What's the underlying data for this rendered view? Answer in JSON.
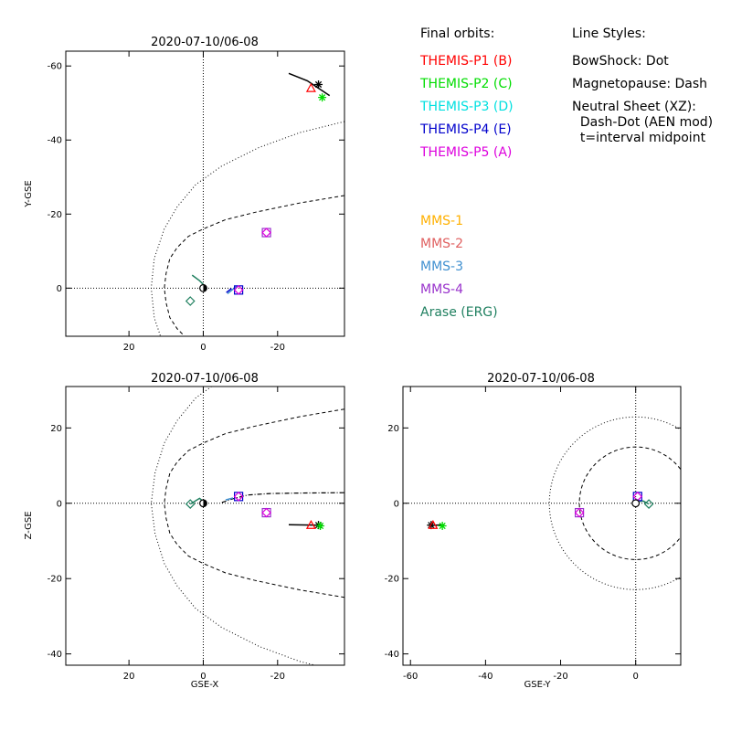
{
  "legend": {
    "orbits_title": "Final orbits:",
    "orbits": [
      {
        "label": "THEMIS-P1 (B)",
        "color": "#ff0000"
      },
      {
        "label": "THEMIS-P2 (C)",
        "color": "#00dd00"
      },
      {
        "label": "THEMIS-P3 (D)",
        "color": "#00e0e0"
      },
      {
        "label": "THEMIS-P4 (E)",
        "color": "#0000cc"
      },
      {
        "label": "THEMIS-P5 (A)",
        "color": "#dd00dd"
      }
    ],
    "mms": [
      {
        "label": "MMS-1",
        "color": "#ffb000"
      },
      {
        "label": "MMS-2",
        "color": "#e06060"
      },
      {
        "label": "MMS-3",
        "color": "#4090d0"
      },
      {
        "label": "MMS-4",
        "color": "#9933cc"
      },
      {
        "label": "Arase (ERG)",
        "color": "#208060"
      }
    ],
    "styles_title": "Line Styles:",
    "styles": [
      "BowShock: Dot",
      "Magnetopause: Dash",
      "Neutral Sheet (XZ):",
      "  Dash-Dot (AEN mod)",
      "  t=interval midpoint"
    ]
  },
  "chart_data": [
    {
      "type": "scatter",
      "title": "2020-07-10/06-08",
      "xlabel": "",
      "ylabel": "Y-GSE",
      "xlim": [
        37,
        -38
      ],
      "ylim": [
        13,
        -64
      ],
      "xticks": [
        20,
        0,
        -20
      ],
      "yticks": [
        0,
        -20,
        -40,
        -60
      ],
      "bowshock_xy": [
        [
          14,
          0
        ],
        [
          13.2,
          8
        ],
        [
          10.5,
          16
        ],
        [
          7,
          22
        ],
        [
          2,
          28
        ],
        [
          -5,
          33
        ],
        [
          -15,
          38
        ],
        [
          -26,
          42
        ],
        [
          -38,
          45
        ]
      ],
      "magnetopause_xy": [
        [
          10.5,
          0
        ],
        [
          10,
          4
        ],
        [
          9,
          8
        ],
        [
          7,
          11
        ],
        [
          4,
          14
        ],
        [
          0,
          16
        ],
        [
          -6,
          18.5
        ],
        [
          -14,
          20.5
        ],
        [
          -26,
          23
        ],
        [
          -38,
          25
        ]
      ],
      "bowshock_mirror": true,
      "magnetopause_mirror": true,
      "arcs": [
        {
          "color": "#000000",
          "pts": [
            [
              -23,
              -58
            ],
            [
              -28,
              -56
            ],
            [
              -31,
              -54
            ],
            [
              -34,
              -52
            ]
          ]
        },
        {
          "color": "#208060",
          "pts": [
            [
              3,
              -3.5
            ],
            [
              1,
              -2
            ],
            [
              0,
              -1
            ]
          ]
        },
        {
          "color": "#4090d0",
          "pts": [
            [
              -6.5,
              1.5
            ],
            [
              -8,
              0.3
            ],
            [
              -9,
              -0.5
            ]
          ]
        },
        {
          "color": "#0000cc",
          "pts": [
            [
              -6.2,
              1.2
            ],
            [
              -7.6,
              0.1
            ]
          ]
        }
      ],
      "markers": [
        {
          "x": -31,
          "y": -55,
          "sym": "star",
          "color": "#000000"
        },
        {
          "x": -29,
          "y": -54,
          "sym": "triangle",
          "color": "#ff0000"
        },
        {
          "x": -32,
          "y": -51.5,
          "sym": "star",
          "color": "#00dd00"
        },
        {
          "x": -17,
          "y": -15,
          "sym": "square",
          "color": "#9933cc"
        },
        {
          "x": -17,
          "y": -15,
          "sym": "diamond",
          "color": "#dd00dd"
        },
        {
          "x": -9.5,
          "y": 0.5,
          "sym": "square",
          "color": "#0000cc"
        },
        {
          "x": -9.5,
          "y": 0.5,
          "sym": "diamond",
          "color": "#dd00dd"
        },
        {
          "x": 3.5,
          "y": 3.5,
          "sym": "diamond",
          "color": "#208060"
        }
      ],
      "earth": {
        "x": 0,
        "y": 0,
        "half_filled": true
      }
    },
    {
      "type": "scatter",
      "title": "2020-07-10/06-08",
      "xlabel": "GSE-X",
      "ylabel": "Z-GSE",
      "xlim": [
        37,
        -38
      ],
      "ylim": [
        -43,
        31
      ],
      "xticks": [
        20,
        0,
        -20
      ],
      "yticks": [
        -40,
        -20,
        0,
        20
      ],
      "bowshock_xy": [
        [
          14,
          0
        ],
        [
          13,
          -8
        ],
        [
          10.5,
          -16
        ],
        [
          7,
          -22
        ],
        [
          2,
          -28
        ],
        [
          -5,
          -33
        ],
        [
          -15,
          -38
        ],
        [
          -26,
          -42
        ],
        [
          -38,
          -45
        ]
      ],
      "magnetopause_xy": [
        [
          10.5,
          0
        ],
        [
          10,
          -4
        ],
        [
          9,
          -8
        ],
        [
          7,
          -11
        ],
        [
          4,
          -14
        ],
        [
          0,
          -16
        ],
        [
          -6,
          -18.5
        ],
        [
          -14,
          -20.5
        ],
        [
          -26,
          -23
        ],
        [
          -38,
          -25
        ]
      ],
      "bowshock_mirror": true,
      "magnetopause_mirror": true,
      "neutral_sheet": [
        [
          -5,
          0.2
        ],
        [
          -8,
          1.2
        ],
        [
          -12,
          2.2
        ],
        [
          -18,
          2.6
        ],
        [
          -26,
          2.7
        ],
        [
          -38,
          2.8
        ]
      ],
      "arcs": [
        {
          "color": "#000000",
          "pts": [
            [
              -23,
              -5.7
            ],
            [
              -31,
              -5.8
            ]
          ]
        },
        {
          "color": "#208060",
          "pts": [
            [
              3.5,
              -0.2
            ],
            [
              1,
              1.3
            ],
            [
              0,
              0.5
            ]
          ]
        },
        {
          "color": "#4090d0",
          "pts": [
            [
              -6,
              0.9
            ],
            [
              -8,
              1.4
            ]
          ]
        }
      ],
      "markers": [
        {
          "x": -31,
          "y": -5.8,
          "sym": "star",
          "color": "#000000"
        },
        {
          "x": -29,
          "y": -5.8,
          "sym": "triangle",
          "color": "#ff0000"
        },
        {
          "x": -31.5,
          "y": -6,
          "sym": "star",
          "color": "#00dd00"
        },
        {
          "x": -17,
          "y": -2.5,
          "sym": "square",
          "color": "#9933cc"
        },
        {
          "x": -17,
          "y": -2.5,
          "sym": "diamond",
          "color": "#dd00dd"
        },
        {
          "x": -9.5,
          "y": 1.8,
          "sym": "square",
          "color": "#0000cc"
        },
        {
          "x": -9.5,
          "y": 1.8,
          "sym": "diamond",
          "color": "#dd00dd"
        },
        {
          "x": 3.5,
          "y": -0.2,
          "sym": "diamond",
          "color": "#208060"
        }
      ],
      "earth": {
        "x": 0,
        "y": 0,
        "half_filled": true
      }
    },
    {
      "type": "scatter",
      "title": "2020-07-10/06-08",
      "xlabel": "GSE-Y",
      "ylabel": "",
      "xlim": [
        -62,
        12
      ],
      "ylim": [
        -43,
        31
      ],
      "xticks": [
        -60,
        -40,
        -20,
        0
      ],
      "yticks": [
        -40,
        -20,
        0,
        20
      ],
      "bowshock_radius": 23,
      "magnetopause_radius": 15,
      "arcs": [
        {
          "color": "#000000",
          "pts": [
            [
              -51,
              -5.7
            ],
            [
              -55,
              -5.9
            ]
          ]
        },
        {
          "color": "#208060",
          "pts": [
            [
              3.5,
              -0.2
            ],
            [
              2,
              0.6
            ],
            [
              1,
              0.5
            ]
          ]
        },
        {
          "color": "#4090d0",
          "pts": [
            [
              0.5,
              0.5
            ],
            [
              0.6,
              1.1
            ]
          ]
        }
      ],
      "markers": [
        {
          "x": -54.5,
          "y": -5.8,
          "sym": "star",
          "color": "#000000"
        },
        {
          "x": -54,
          "y": -5.8,
          "sym": "triangle",
          "color": "#ff0000"
        },
        {
          "x": -51.5,
          "y": -6,
          "sym": "star",
          "color": "#00dd00"
        },
        {
          "x": -15,
          "y": -2.5,
          "sym": "square",
          "color": "#9933cc"
        },
        {
          "x": -15,
          "y": -2.5,
          "sym": "diamond",
          "color": "#dd00dd"
        },
        {
          "x": 0.5,
          "y": 1.8,
          "sym": "square",
          "color": "#0000cc"
        },
        {
          "x": 0.5,
          "y": 1.8,
          "sym": "diamond",
          "color": "#dd00dd"
        },
        {
          "x": 3.5,
          "y": -0.2,
          "sym": "diamond",
          "color": "#208060"
        }
      ],
      "earth": {
        "x": 0,
        "y": 0,
        "half_filled": false
      }
    }
  ]
}
